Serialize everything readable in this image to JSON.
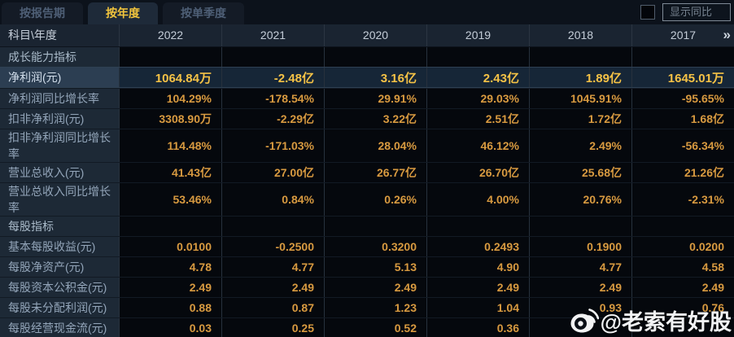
{
  "tabs": [
    {
      "label": "按报告期",
      "active": false
    },
    {
      "label": "按年度",
      "active": true
    },
    {
      "label": "按单季度",
      "active": false
    }
  ],
  "toolbar": {
    "show_yoy_label": "显示同比",
    "checkbox_checked": false
  },
  "table": {
    "corner_label": "科目\\年度",
    "years": [
      "2022",
      "2021",
      "2020",
      "2019",
      "2018",
      "2017"
    ],
    "more_icon": "»",
    "rows": [
      {
        "type": "section",
        "label": "成长能力指标",
        "values": [
          "",
          "",
          "",
          "",
          "",
          ""
        ]
      },
      {
        "type": "highlight",
        "label": "净利润(元)",
        "values": [
          "1064.84万",
          "-2.48亿",
          "3.16亿",
          "2.43亿",
          "1.89亿",
          "1645.01万"
        ]
      },
      {
        "type": "normal",
        "label": "净利润同比增长率",
        "values": [
          "104.29%",
          "-178.54%",
          "29.91%",
          "29.03%",
          "1045.91%",
          "-95.65%"
        ]
      },
      {
        "type": "normal",
        "label": "扣非净利润(元)",
        "values": [
          "3308.90万",
          "-2.29亿",
          "3.22亿",
          "2.51亿",
          "1.72亿",
          "1.68亿"
        ]
      },
      {
        "type": "normal",
        "label": "扣非净利润同比增长率",
        "values": [
          "114.48%",
          "-171.03%",
          "28.04%",
          "46.12%",
          "2.49%",
          "-56.34%"
        ]
      },
      {
        "type": "normal",
        "label": "营业总收入(元)",
        "values": [
          "41.43亿",
          "27.00亿",
          "26.77亿",
          "26.70亿",
          "25.68亿",
          "21.26亿"
        ]
      },
      {
        "type": "normal",
        "label": "营业总收入同比增长率",
        "values": [
          "53.46%",
          "0.84%",
          "0.26%",
          "4.00%",
          "20.76%",
          "-2.31%"
        ]
      },
      {
        "type": "section",
        "label": "每股指标",
        "values": [
          "",
          "",
          "",
          "",
          "",
          ""
        ]
      },
      {
        "type": "normal",
        "label": "基本每股收益(元)",
        "values": [
          "0.0100",
          "-0.2500",
          "0.3200",
          "0.2493",
          "0.1900",
          "0.0200"
        ]
      },
      {
        "type": "normal",
        "label": "每股净资产(元)",
        "values": [
          "4.78",
          "4.77",
          "5.13",
          "4.90",
          "4.77",
          "4.58"
        ]
      },
      {
        "type": "normal",
        "label": "每股资本公积金(元)",
        "values": [
          "2.49",
          "2.49",
          "2.49",
          "2.49",
          "2.49",
          "2.49"
        ]
      },
      {
        "type": "normal",
        "label": "每股未分配利润(元)",
        "values": [
          "0.88",
          "0.87",
          "1.23",
          "1.04",
          "0.93",
          "0.76"
        ]
      },
      {
        "type": "normal",
        "label": "每股经营现金流(元)",
        "values": [
          "0.03",
          "0.25",
          "0.52",
          "0.36",
          "",
          ""
        ]
      }
    ]
  },
  "watermark": {
    "icon": "weibo-icon",
    "handle": "@老索有好股"
  },
  "colors": {
    "accent_gold": "#f2c53d",
    "value_orange": "#d89a40",
    "highlight_row_bg": "#162637",
    "label_column_bg": "#1d2936",
    "tab_inactive_text": "#4e5f76"
  }
}
